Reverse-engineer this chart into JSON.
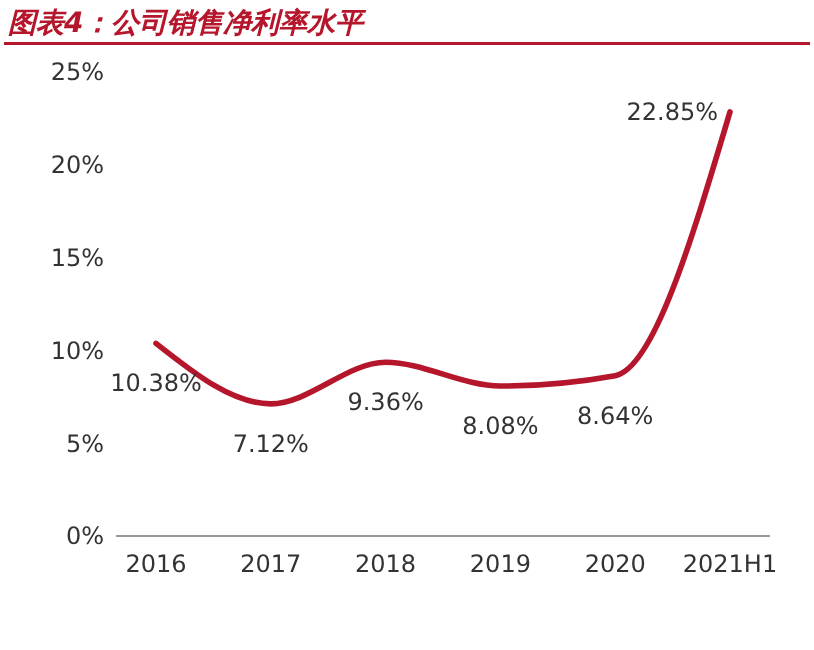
{
  "chart_data": {
    "type": "line",
    "title": "图表4：公司销售净利率水平",
    "categories": [
      "2016",
      "2017",
      "2018",
      "2019",
      "2020",
      "2021H1"
    ],
    "series": [
      {
        "color": "#b5162b",
        "values": [
          10.38,
          7.12,
          9.36,
          8.08,
          8.64,
          22.85
        ],
        "value_labels": [
          "10.38%",
          "7.12%",
          "9.36%",
          "8.08%",
          "8.64%",
          "22.85%"
        ]
      }
    ],
    "ylim": [
      0,
      25
    ],
    "yticks": [
      {
        "value": 0,
        "label": "0%"
      },
      {
        "value": 5,
        "label": "5%"
      },
      {
        "value": 10,
        "label": "10%"
      },
      {
        "value": 15,
        "label": "15%"
      },
      {
        "value": 20,
        "label": "20%"
      },
      {
        "value": 25,
        "label": "25%"
      }
    ],
    "grid": false,
    "marker": "none",
    "line_style": "solid"
  }
}
